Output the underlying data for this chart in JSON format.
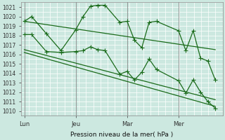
{
  "title": "",
  "xlabel": "Pression niveau de la mer( hPa )",
  "ylabel": "",
  "bg_color": "#cce8e0",
  "grid_color": "#ffffff",
  "line_color": "#1a6b1a",
  "ylim": [
    1009.5,
    1021.5
  ],
  "yticks": [
    1010,
    1011,
    1012,
    1013,
    1014,
    1015,
    1016,
    1017,
    1018,
    1019,
    1020,
    1021
  ],
  "xtick_labels": [
    "Lun",
    "Jeu",
    "Mar",
    "Mer"
  ],
  "xtick_positions": [
    0,
    3.5,
    7.0,
    10.5
  ],
  "vline_positions": [
    0,
    3.5,
    7.0,
    10.5
  ],
  "xlim": [
    -0.2,
    13.5
  ],
  "series1_x": [
    0,
    0.5,
    1.5,
    2.5,
    3.5,
    4.0,
    4.5,
    5.0,
    5.5,
    6.5,
    7.0,
    7.5,
    8.0,
    8.5,
    9.0,
    10.5,
    11.0,
    11.5,
    12.0,
    12.5,
    13.0
  ],
  "series1_y": [
    1019.5,
    1020.0,
    1018.2,
    1016.4,
    1018.6,
    1020.0,
    1021.1,
    1021.2,
    1021.2,
    1019.4,
    1019.5,
    1017.5,
    1016.7,
    1019.4,
    1019.5,
    1018.5,
    1016.4,
    1018.5,
    1015.6,
    1015.3,
    1013.3
  ],
  "series2_x": [
    0,
    0.5,
    1.5,
    2.5,
    3.5,
    4.0,
    4.5,
    5.0,
    5.5,
    6.5,
    7.0,
    7.5,
    8.0,
    8.5,
    9.0,
    10.5,
    11.0,
    11.5,
    12.0,
    12.5,
    13.0
  ],
  "series2_y": [
    1018.1,
    1018.1,
    1016.3,
    1016.2,
    1016.3,
    1016.4,
    1016.8,
    1016.5,
    1016.4,
    1013.9,
    1014.2,
    1013.3,
    1014.1,
    1015.5,
    1014.4,
    1013.2,
    1011.9,
    1013.3,
    1012.0,
    1011.0,
    1010.3
  ],
  "trend1_x": [
    0,
    13.0
  ],
  "trend1_y": [
    1019.5,
    1016.5
  ],
  "trend2_x": [
    0,
    13.0
  ],
  "trend2_y": [
    1016.5,
    1011.2
  ],
  "trend3_x": [
    0,
    13.0
  ],
  "trend3_y": [
    1016.2,
    1010.5
  ],
  "marker": "+",
  "markersize": 4,
  "linewidth": 0.9
}
